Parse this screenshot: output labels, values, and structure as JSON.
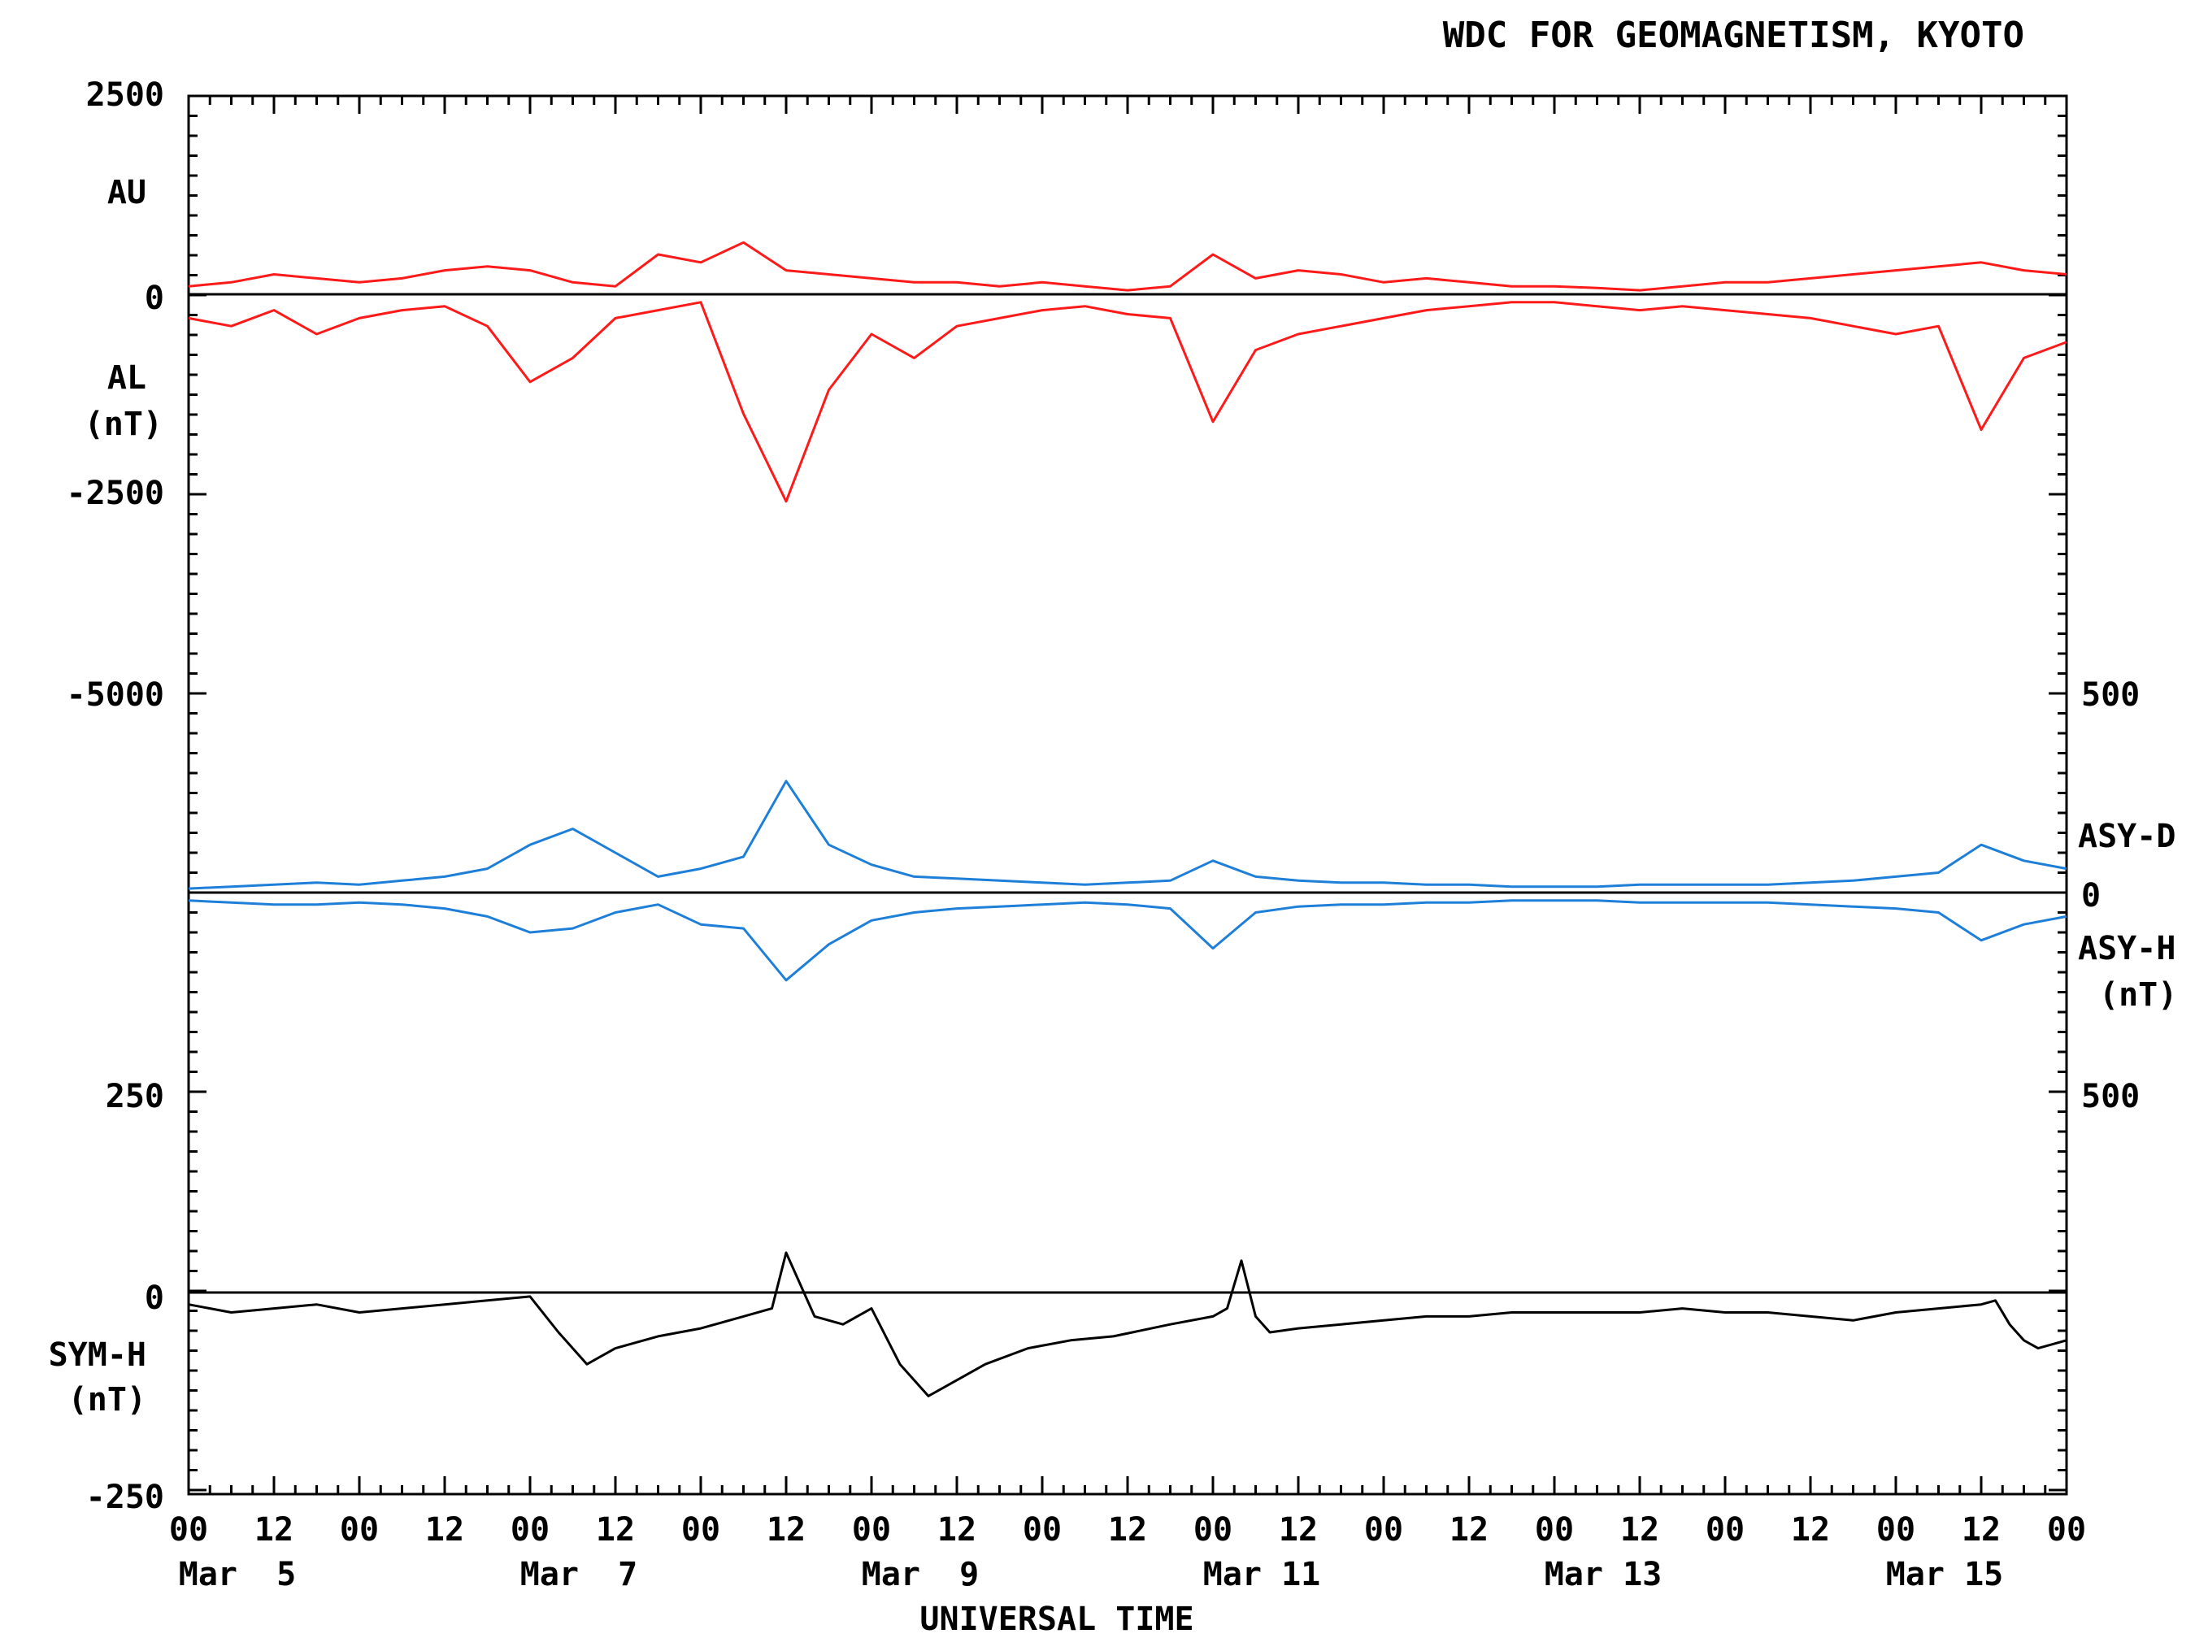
{
  "header": {
    "source": "WDC FOR GEOMAGNETISM, KYOTO"
  },
  "xaxis": {
    "title": "UNIVERSAL TIME",
    "tick_labels": [
      "00",
      "12",
      "00",
      "12",
      "00",
      "12",
      "00",
      "12",
      "00",
      "12",
      "00",
      "12",
      "00",
      "12",
      "00",
      "12",
      "00",
      "12",
      "00",
      "12",
      "00",
      "12",
      "00"
    ],
    "date_labels": [
      "Mar  5",
      "Mar  7",
      "Mar  9",
      "Mar 11",
      "Mar 13",
      "Mar 15"
    ]
  },
  "colors": {
    "auAl": "#ff1a1a",
    "asy": "#1e7fd8",
    "sym": "#000000",
    "frame": "#000000"
  },
  "chart_data": [
    {
      "type": "line",
      "panel": "AU/AL",
      "labels": {
        "au": "AU",
        "al": "AL",
        "unit": "(nT)"
      },
      "yticks": [
        "2500",
        "0",
        "-2500",
        "-5000"
      ],
      "ylim": [
        -5000,
        2500
      ],
      "xlim_hours": [
        0,
        264
      ],
      "series": [
        {
          "name": "AU",
          "color": "#ff1a1a",
          "x": [
            0,
            6,
            12,
            18,
            24,
            30,
            36,
            42,
            48,
            54,
            60,
            66,
            72,
            78,
            84,
            90,
            96,
            102,
            108,
            114,
            120,
            126,
            132,
            138,
            144,
            150,
            156,
            162,
            168,
            174,
            180,
            186,
            192,
            198,
            204,
            210,
            216,
            222,
            228,
            234,
            240,
            246,
            252,
            258,
            264
          ],
          "values": [
            100,
            150,
            250,
            200,
            150,
            200,
            300,
            350,
            300,
            150,
            100,
            500,
            400,
            650,
            300,
            250,
            200,
            150,
            150,
            100,
            150,
            100,
            50,
            100,
            500,
            200,
            300,
            250,
            150,
            200,
            150,
            100,
            100,
            80,
            50,
            100,
            150,
            150,
            200,
            250,
            300,
            350,
            400,
            300,
            250
          ]
        },
        {
          "name": "AL",
          "color": "#ff1a1a",
          "x": [
            0,
            6,
            12,
            18,
            24,
            30,
            36,
            42,
            48,
            54,
            60,
            66,
            72,
            78,
            84,
            90,
            96,
            102,
            108,
            114,
            120,
            126,
            132,
            138,
            144,
            150,
            156,
            162,
            168,
            174,
            180,
            186,
            192,
            198,
            204,
            210,
            216,
            222,
            228,
            234,
            240,
            246,
            252,
            258,
            264
          ],
          "values": [
            -300,
            -400,
            -200,
            -500,
            -300,
            -200,
            -150,
            -400,
            -1100,
            -800,
            -300,
            -200,
            -100,
            -1500,
            -2600,
            -1200,
            -500,
            -800,
            -400,
            -300,
            -200,
            -150,
            -250,
            -300,
            -1600,
            -700,
            -500,
            -400,
            -300,
            -200,
            -150,
            -100,
            -100,
            -150,
            -200,
            -150,
            -200,
            -250,
            -300,
            -400,
            -500,
            -400,
            -1700,
            -800,
            -600
          ]
        }
      ]
    },
    {
      "type": "line",
      "panel": "ASY-D/ASY-H",
      "labels": {
        "asyd": "ASY-D",
        "asyh": "ASY-H",
        "unit": "(nT)"
      },
      "yticks": [
        "500",
        "0"
      ],
      "ylim": [
        -500,
        500
      ],
      "xlim_hours": [
        0,
        264
      ],
      "series": [
        {
          "name": "ASY-D",
          "color": "#1e7fd8",
          "x": [
            0,
            6,
            12,
            18,
            24,
            30,
            36,
            42,
            48,
            54,
            60,
            66,
            72,
            78,
            84,
            90,
            96,
            102,
            108,
            114,
            120,
            126,
            132,
            138,
            144,
            150,
            156,
            162,
            168,
            174,
            180,
            186,
            192,
            198,
            204,
            210,
            216,
            222,
            228,
            234,
            240,
            246,
            252,
            258,
            264
          ],
          "values": [
            10,
            15,
            20,
            25,
            20,
            30,
            40,
            60,
            120,
            160,
            100,
            40,
            60,
            90,
            280,
            120,
            70,
            40,
            35,
            30,
            25,
            20,
            25,
            30,
            80,
            40,
            30,
            25,
            25,
            20,
            20,
            15,
            15,
            15,
            20,
            20,
            20,
            20,
            25,
            30,
            40,
            50,
            120,
            80,
            60
          ]
        },
        {
          "name": "ASY-H",
          "color": "#1e7fd8",
          "x": [
            0,
            6,
            12,
            18,
            24,
            30,
            36,
            42,
            48,
            54,
            60,
            66,
            72,
            78,
            84,
            90,
            96,
            102,
            108,
            114,
            120,
            126,
            132,
            138,
            144,
            150,
            156,
            162,
            168,
            174,
            180,
            186,
            192,
            198,
            204,
            210,
            216,
            222,
            228,
            234,
            240,
            246,
            252,
            258,
            264
          ],
          "values": [
            -20,
            -25,
            -30,
            -30,
            -25,
            -30,
            -40,
            -60,
            -100,
            -90,
            -50,
            -30,
            -80,
            -90,
            -220,
            -130,
            -70,
            -50,
            -40,
            -35,
            -30,
            -25,
            -30,
            -40,
            -140,
            -50,
            -35,
            -30,
            -30,
            -25,
            -25,
            -20,
            -20,
            -20,
            -25,
            -25,
            -25,
            -25,
            -30,
            -35,
            -40,
            -50,
            -120,
            -80,
            -60
          ]
        }
      ]
    },
    {
      "type": "line",
      "panel": "SYM-H",
      "labels": {
        "symh": "SYM-H",
        "unit": "(nT)"
      },
      "yticks": [
        "250",
        "0",
        "-250"
      ],
      "yticks_right": [
        "500"
      ],
      "ylim": [
        -250,
        250
      ],
      "xlim_hours": [
        0,
        264
      ],
      "series": [
        {
          "name": "SYM-H",
          "color": "#000000",
          "x": [
            0,
            6,
            12,
            18,
            24,
            30,
            36,
            42,
            48,
            52,
            56,
            60,
            66,
            72,
            78,
            82,
            84,
            88,
            92,
            96,
            100,
            104,
            108,
            112,
            118,
            124,
            130,
            138,
            144,
            146,
            148,
            150,
            152,
            156,
            162,
            168,
            174,
            180,
            186,
            192,
            198,
            204,
            210,
            216,
            222,
            228,
            234,
            240,
            246,
            252,
            254,
            256,
            258,
            260,
            264
          ],
          "values": [
            -15,
            -25,
            -20,
            -15,
            -25,
            -20,
            -15,
            -10,
            -5,
            -50,
            -90,
            -70,
            -55,
            -45,
            -30,
            -20,
            50,
            -30,
            -40,
            -20,
            -90,
            -130,
            -110,
            -90,
            -70,
            -60,
            -55,
            -40,
            -30,
            -20,
            40,
            -30,
            -50,
            -45,
            -40,
            -35,
            -30,
            -30,
            -25,
            -25,
            -25,
            -25,
            -20,
            -25,
            -25,
            -30,
            -35,
            -25,
            -20,
            -15,
            -10,
            -40,
            -60,
            -70,
            -60
          ]
        }
      ]
    }
  ]
}
